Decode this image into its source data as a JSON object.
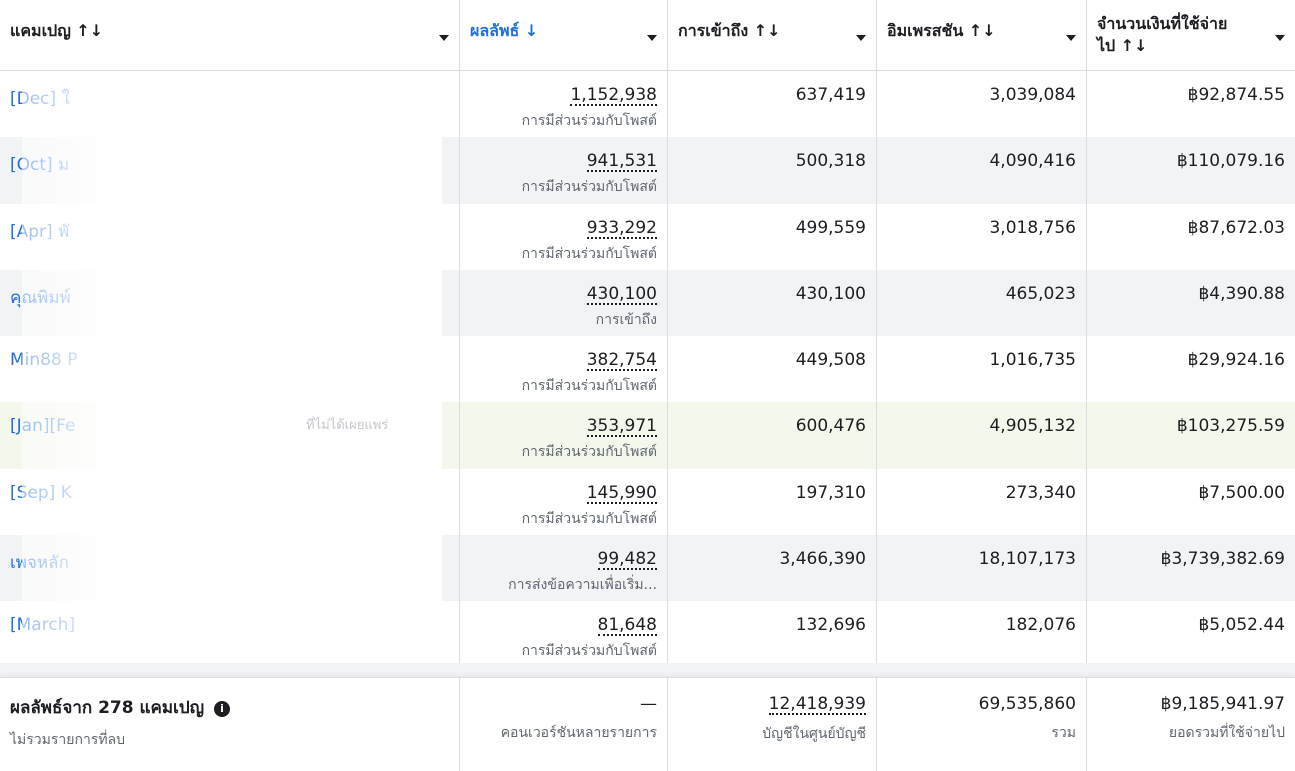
{
  "columns": [
    {
      "label": "แคมเปญ ↑↓"
    },
    {
      "label": "ผลลัพธ์ ↓"
    },
    {
      "label": "การเข้าถึง ↑↓"
    },
    {
      "label": "อิมเพรสชัน ↑↓"
    },
    {
      "label_line1": "จำนวนเงินที่ใช้จ่าย",
      "label_line2": "ไป ↑↓"
    }
  ],
  "rows": [
    {
      "campaign": "[Dec] ใ",
      "result": "1,152,938",
      "result_type": "การมีส่วนร่วมกับโพสต์",
      "reach": "637,419",
      "impressions": "3,039,084",
      "spend": "฿92,874.55"
    },
    {
      "campaign": "[Oct] ม",
      "result": "941,531",
      "result_type": "การมีส่วนร่วมกับโพสต์",
      "reach": "500,318",
      "impressions": "4,090,416",
      "spend": "฿110,079.16"
    },
    {
      "campaign": "[Apr] พั",
      "result": "933,292",
      "result_type": "การมีส่วนร่วมกับโพสต์",
      "reach": "499,559",
      "impressions": "3,018,756",
      "spend": "฿87,672.03"
    },
    {
      "campaign": "คุณพิมพ์",
      "result": "430,100",
      "result_type": "การเข้าถึง",
      "reach": "430,100",
      "impressions": "465,023",
      "spend": "฿4,390.88"
    },
    {
      "campaign": "Min88 P",
      "result": "382,754",
      "result_type": "การมีส่วนร่วมกับโพสต์",
      "reach": "449,508",
      "impressions": "1,016,735",
      "spend": "฿29,924.16"
    },
    {
      "campaign": "[Jan][Fe",
      "badge": "ที่ไม่ได้เผยแพร่",
      "result": "353,971",
      "result_type": "การมีส่วนร่วมกับโพสต์",
      "reach": "600,476",
      "impressions": "4,905,132",
      "spend": "฿103,275.59"
    },
    {
      "campaign": "[Sep] K",
      "result": "145,990",
      "result_type": "การมีส่วนร่วมกับโพสต์",
      "reach": "197,310",
      "impressions": "273,340",
      "spend": "฿7,500.00"
    },
    {
      "campaign": "เพจหลัก",
      "result": "99,482",
      "result_type": "การส่งข้อความเพื่อเริ่ม...",
      "reach": "3,466,390",
      "impressions": "18,107,173",
      "spend": "฿3,739,382.69"
    },
    {
      "campaign": "[March]",
      "result": "81,648",
      "result_type": "การมีส่วนร่วมกับโพสต์",
      "reach": "132,696",
      "impressions": "182,076",
      "spend": "฿5,052.44"
    }
  ],
  "footer": {
    "title": "ผลลัพธ์จาก 278 แคมเปญ",
    "subtitle": "ไม่รวมรายการที่ลบ",
    "result_value": "—",
    "result_sub": "คอนเวอร์ชันหลายรายการ",
    "reach_value": "12,418,939",
    "reach_sub": "บัญชีในศูนย์บัญชี",
    "impressions_value": "69,535,860",
    "impressions_sub": "รวม",
    "spend_value": "฿9,185,941.97",
    "spend_sub": "ยอดรวมที่ใช้จ่ายไป"
  },
  "colors": {
    "link": "#216fdb",
    "row_alt": "#f2f3f5",
    "row_highlight": "#f3f7ec"
  }
}
